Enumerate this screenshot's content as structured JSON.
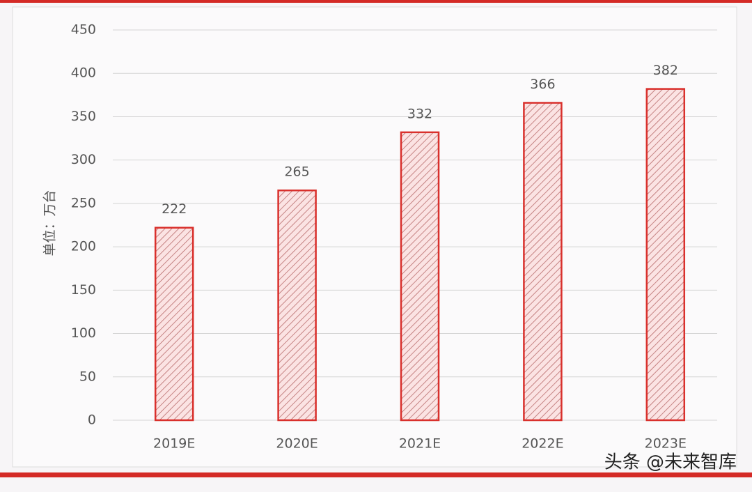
{
  "chart_data": {
    "type": "bar",
    "y_label": "单位：万台",
    "categories": [
      "2019E",
      "2020E",
      "2021E",
      "2022E",
      "2023E"
    ],
    "values": [
      222,
      265,
      332,
      366,
      382
    ],
    "color": "#d9302c",
    "ylim": [
      0,
      450
    ],
    "yticks": [
      0,
      50,
      100,
      150,
      200,
      250,
      300,
      350,
      400,
      450
    ],
    "grid": true,
    "watermark": "头条 @未来智库"
  }
}
